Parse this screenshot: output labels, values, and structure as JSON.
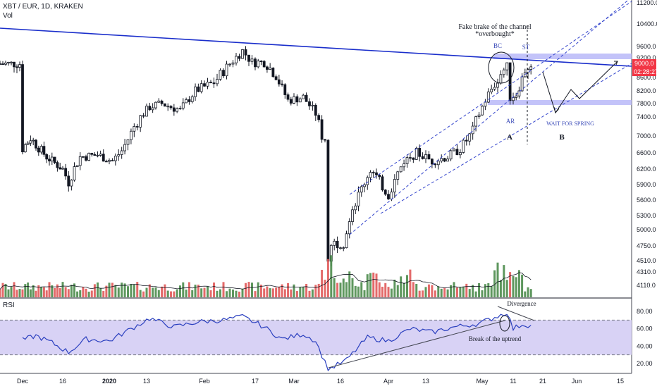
{
  "header": {
    "symbol_line": "XBT / EUR, 1D, KRAKEN",
    "vol_label": "Vol"
  },
  "rsi_label": "RSI",
  "chart_data": [
    {
      "type": "candlestick",
      "title": "XBT / EUR, 1D, KRAKEN",
      "price_axis_ticks": [
        11200,
        10400,
        9600,
        9200,
        8800,
        8600,
        8200,
        7800,
        7400,
        7000,
        6600,
        6200,
        5900,
        5600,
        5300,
        5000,
        4750,
        4510,
        4310,
        4110
      ],
      "x_tick_labels": [
        "Dec",
        "16",
        "2020",
        "13",
        "Feb",
        "17",
        "Mar",
        "16",
        "Apr",
        "13",
        "May",
        "11",
        "21",
        "Jun",
        "15"
      ],
      "last_price_tag": "9000.0",
      "countdown_tag": "02:28:27",
      "price_path_points": [
        [
          "Dec 1",
          6700
        ],
        [
          "Dec 4",
          6950
        ],
        [
          "Dec 10",
          6500
        ],
        [
          "Dec 16",
          6200
        ],
        [
          "Dec 18",
          5950
        ],
        [
          "Dec 22",
          6500
        ],
        [
          "Dec 28",
          6550
        ],
        [
          "Jan 2",
          6400
        ],
        [
          "Jan 5",
          6650
        ],
        [
          "Jan 9",
          7200
        ],
        [
          "Jan 14",
          7700
        ],
        [
          "Jan 18",
          7800
        ],
        [
          "Jan 24",
          7600
        ],
        [
          "Jan 29",
          8200
        ],
        [
          "Feb 4",
          8450
        ],
        [
          "Feb 9",
          9000
        ],
        [
          "Feb 13",
          9450
        ],
        [
          "Feb 16",
          9050
        ],
        [
          "Feb 20",
          9050
        ],
        [
          "Feb 24",
          8650
        ],
        [
          "Feb 28",
          7900
        ],
        [
          "Mar 4",
          8000
        ],
        [
          "Mar 8",
          7500
        ],
        [
          "Mar 10",
          7000
        ],
        [
          "Mar 12",
          4500
        ],
        [
          "Mar 13",
          4800
        ],
        [
          "Mar 17",
          4800
        ],
        [
          "Mar 22",
          5700
        ],
        [
          "Mar 26",
          6200
        ],
        [
          "Apr 1",
          5700
        ],
        [
          "Apr 6",
          6400
        ],
        [
          "Apr 10",
          6600
        ],
        [
          "Apr 15",
          6400
        ],
        [
          "Apr 20",
          6500
        ],
        [
          "Apr 24",
          6700
        ],
        [
          "Apr 28",
          7100
        ],
        [
          "May 3",
          8100
        ],
        [
          "May 7",
          8700
        ],
        [
          "May 9",
          8900
        ],
        [
          "May 10",
          8000
        ],
        [
          "May 12",
          8100
        ],
        [
          "May 15",
          8800
        ],
        [
          "May 17",
          9000
        ]
      ],
      "volume_axis_ticks": []
    },
    {
      "type": "line",
      "title": "RSI",
      "y_ticks": [
        80.0,
        60.0,
        40.0,
        20.0
      ],
      "band": [
        30,
        70
      ],
      "points": [
        [
          "Dec 1",
          47
        ],
        [
          "Dec 6",
          52
        ],
        [
          "Dec 12",
          44
        ],
        [
          "Dec 18",
          33
        ],
        [
          "Dec 24",
          48
        ],
        [
          "Jan 1",
          46
        ],
        [
          "Jan 8",
          60
        ],
        [
          "Jan 14",
          72
        ],
        [
          "Jan 22",
          62
        ],
        [
          "Jan 30",
          68
        ],
        [
          "Feb 7",
          70
        ],
        [
          "Feb 13",
          74
        ],
        [
          "Feb 20",
          62
        ],
        [
          "Feb 26",
          48
        ],
        [
          "Mar 4",
          54
        ],
        [
          "Mar 8",
          46
        ],
        [
          "Mar 12",
          13
        ],
        [
          "Mar 18",
          24
        ],
        [
          "Mar 25",
          50
        ],
        [
          "Apr 1",
          46
        ],
        [
          "Apr 8",
          60
        ],
        [
          "Apr 15",
          56
        ],
        [
          "Apr 22",
          62
        ],
        [
          "Apr 30",
          66
        ],
        [
          "May 7",
          76
        ],
        [
          "May 9",
          79
        ],
        [
          "May 11",
          60
        ],
        [
          "May 14",
          65
        ],
        [
          "May 17",
          64
        ]
      ]
    }
  ],
  "annotations": {
    "fake_break": "Fake brake of the channel",
    "overbought": "*overbought*",
    "bc": "BC",
    "st": "ST",
    "ar": "AR",
    "a": "A",
    "b": "B",
    "wait": "WAIT FOR SPRING",
    "divergence": "Divergence",
    "break_uptrend": "Break of the uptrend"
  },
  "colors": {
    "up": "#26a69a",
    "up_volume": "#4c8c4c",
    "down_volume": "#e05a5a",
    "candle": "#131722",
    "trendline": "#1a2ecb",
    "channel": "#3344cc",
    "band_fill": "#d8d2f5",
    "zone_fill": "#b8b8f8",
    "rsi_line": "#2a3fbf",
    "tag_red": "#f23645"
  }
}
